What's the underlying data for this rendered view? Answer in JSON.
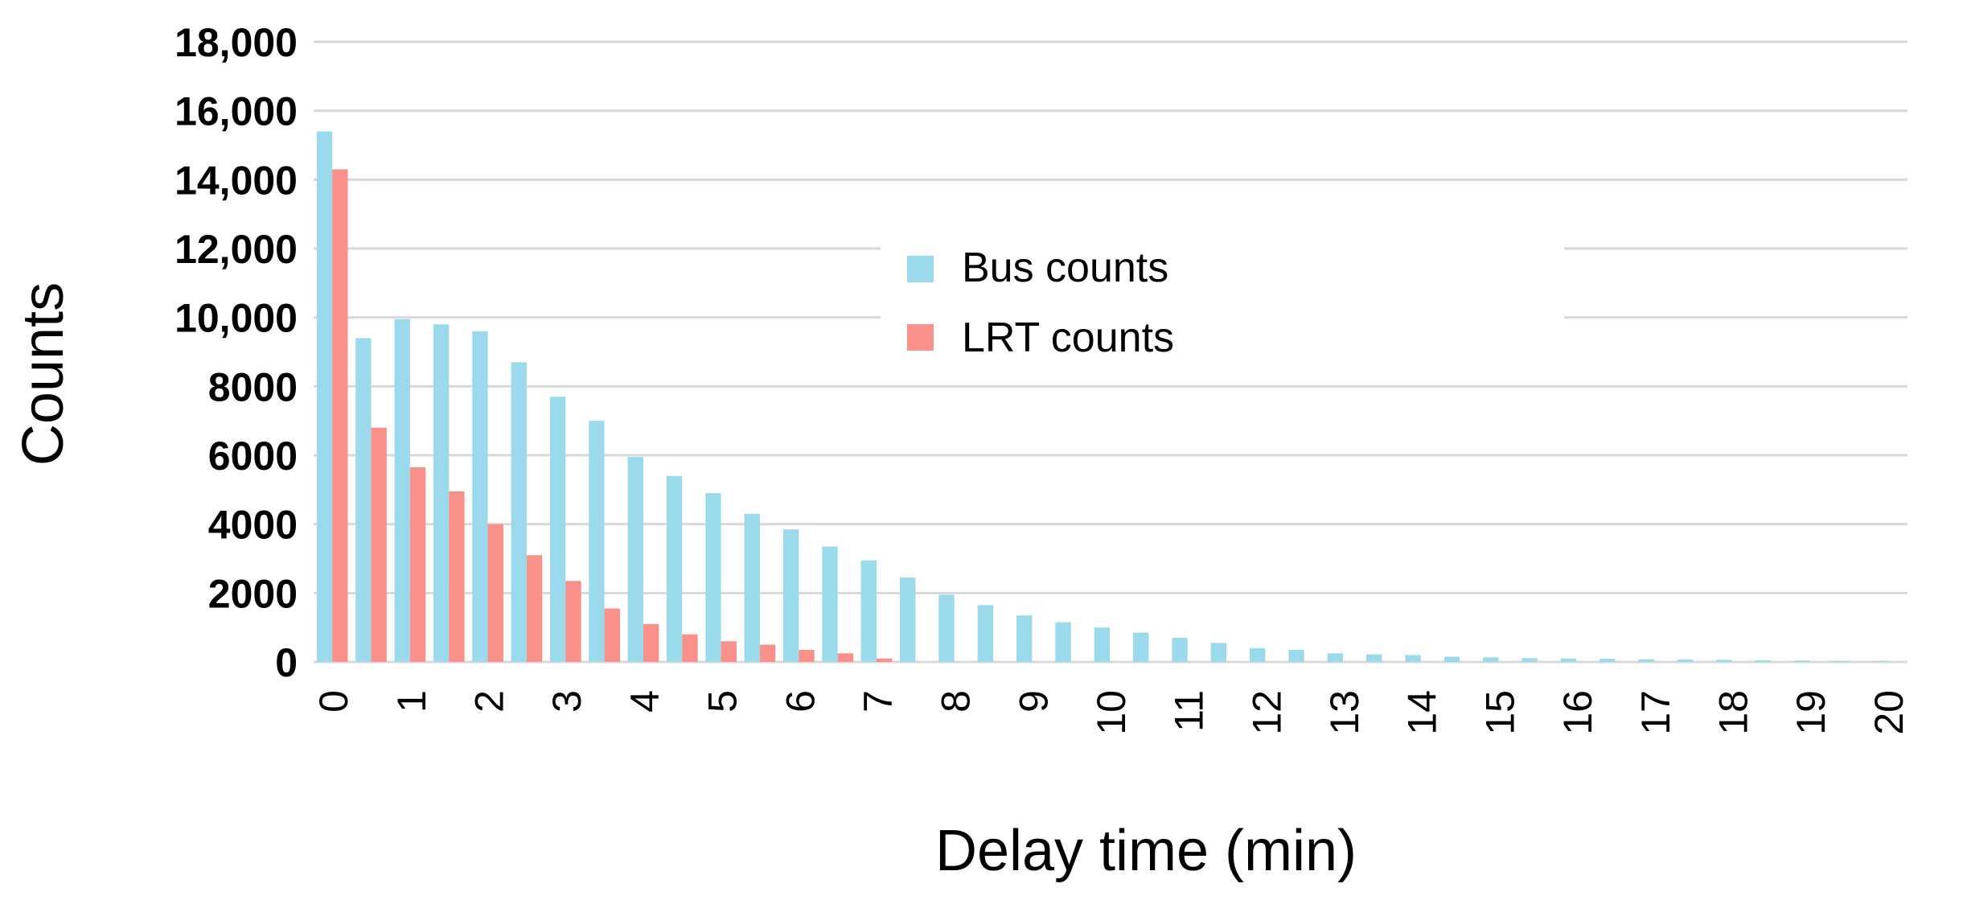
{
  "chart_data": {
    "type": "bar",
    "categories": [
      "0",
      "0.5",
      "1",
      "1.5",
      "2",
      "2.5",
      "3",
      "3.5",
      "4",
      "4.5",
      "5",
      "5.5",
      "6",
      "6.5",
      "7",
      "7.5",
      "8",
      "8.5",
      "9",
      "9.5",
      "10",
      "10.5",
      "11",
      "11.5",
      "12",
      "12.5",
      "13",
      "13.5",
      "14",
      "14.5",
      "15",
      "15.5",
      "16",
      "16.5",
      "17",
      "17.5",
      "18",
      "18.5",
      "19",
      "19.5",
      "20"
    ],
    "x_tick_labels": [
      "0",
      "1",
      "2",
      "3",
      "4",
      "5",
      "6",
      "7",
      "8",
      "9",
      "10",
      "11",
      "12",
      "13",
      "14",
      "15",
      "16",
      "17",
      "18",
      "19",
      "20"
    ],
    "y_tick_labels": [
      "0",
      "2000",
      "4000",
      "6000",
      "8000",
      "10,000",
      "12,000",
      "14,000",
      "16,000",
      "18,000"
    ],
    "y_ticks": [
      0,
      2000,
      4000,
      6000,
      8000,
      10000,
      12000,
      14000,
      16000,
      18000
    ],
    "series": [
      {
        "name": "Bus counts",
        "color": "#9bd9ec",
        "values": [
          15400,
          9400,
          9950,
          9800,
          9600,
          8700,
          7700,
          7000,
          5950,
          5400,
          4900,
          4300,
          3850,
          3350,
          2950,
          2450,
          1950,
          1650,
          1350,
          1150,
          1000,
          850,
          700,
          550,
          400,
          350,
          250,
          220,
          200,
          150,
          130,
          110,
          100,
          90,
          80,
          70,
          60,
          50,
          40,
          30,
          20
        ]
      },
      {
        "name": "LRT counts",
        "color": "#f9908a",
        "values": [
          14300,
          6800,
          5650,
          4950,
          4000,
          3100,
          2350,
          1550,
          1100,
          800,
          600,
          500,
          350,
          250,
          100,
          0,
          0,
          0,
          0,
          0,
          0,
          0,
          0,
          0,
          0,
          0,
          0,
          0,
          0,
          0,
          0,
          0,
          0,
          0,
          0,
          0,
          0,
          0,
          0,
          0,
          0
        ]
      }
    ],
    "xlabel": "Delay time (min)",
    "ylabel": "Counts",
    "ylim": [
      0,
      18000
    ],
    "grid": true,
    "legend_position": "center"
  }
}
